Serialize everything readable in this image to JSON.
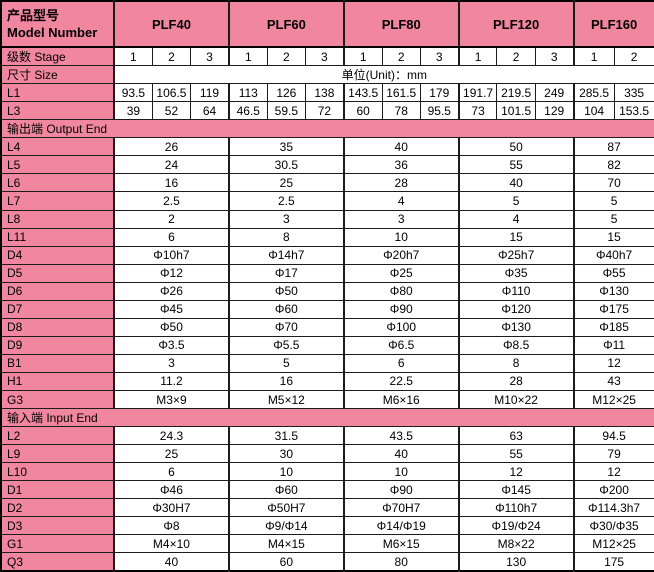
{
  "colors": {
    "pink": "#F0879F",
    "border": "#1c1c1c",
    "cell_bg": "#ffffff",
    "text": "#000000"
  },
  "table": {
    "corner_zh": "产品型号",
    "corner_en": "Model Number",
    "stage_row_label": "级数 Stage",
    "size_row_label": "尺寸 Size",
    "unit_text": "单位(Unit)：mm",
    "models": [
      {
        "name": "PLF40",
        "stages": 3,
        "stage_numbers": [
          "1",
          "2",
          "3"
        ]
      },
      {
        "name": "PLF60",
        "stages": 3,
        "stage_numbers": [
          "1",
          "2",
          "3"
        ]
      },
      {
        "name": "PLF80",
        "stages": 3,
        "stage_numbers": [
          "1",
          "2",
          "3"
        ]
      },
      {
        "name": "PLF120",
        "stages": 3,
        "stage_numbers": [
          "1",
          "2",
          "3"
        ]
      },
      {
        "name": "PLF160",
        "stages": 2,
        "stage_numbers": [
          "1",
          "2"
        ]
      }
    ],
    "per_stage_rows": [
      {
        "label": "L1",
        "values": [
          "93.5",
          "106.5",
          "119",
          "113",
          "126",
          "138",
          "143.5",
          "161.5",
          "179",
          "191.7",
          "219.5",
          "249",
          "285.5",
          "335"
        ]
      },
      {
        "label": "L3",
        "values": [
          "39",
          "52",
          "64",
          "46.5",
          "59.5",
          "72",
          "60",
          "78",
          "95.5",
          "73",
          "101.5",
          "129",
          "104",
          "153.5"
        ]
      }
    ],
    "sections": [
      {
        "label": "输出端 Output End",
        "rows": [
          {
            "label": "L4",
            "values": [
              "26",
              "35",
              "40",
              "50",
              "87"
            ]
          },
          {
            "label": "L5",
            "values": [
              "24",
              "30.5",
              "36",
              "55",
              "82"
            ]
          },
          {
            "label": "L6",
            "values": [
              "16",
              "25",
              "28",
              "40",
              "70"
            ]
          },
          {
            "label": "L7",
            "values": [
              "2.5",
              "2.5",
              "4",
              "5",
              "5"
            ]
          },
          {
            "label": "L8",
            "values": [
              "2",
              "3",
              "3",
              "4",
              "5"
            ]
          },
          {
            "label": "L11",
            "values": [
              "6",
              "8",
              "10",
              "15",
              "15"
            ]
          },
          {
            "label": "D4",
            "values": [
              "Φ10h7",
              "Φ14h7",
              "Φ20h7",
              "Φ25h7",
              "Φ40h7"
            ]
          },
          {
            "label": "D5",
            "values": [
              "Φ12",
              "Φ17",
              "Φ25",
              "Φ35",
              "Φ55"
            ]
          },
          {
            "label": "D6",
            "values": [
              "Φ26",
              "Φ50",
              "Φ80",
              "Φ110",
              "Φ130"
            ]
          },
          {
            "label": "D7",
            "values": [
              "Φ45",
              "Φ60",
              "Φ90",
              "Φ120",
              "Φ175"
            ]
          },
          {
            "label": "D8",
            "values": [
              "Φ50",
              "Φ70",
              "Φ100",
              "Φ130",
              "Φ185"
            ]
          },
          {
            "label": "D9",
            "values": [
              "Φ3.5",
              "Φ5.5",
              "Φ6.5",
              "Φ8.5",
              "Φ11"
            ]
          },
          {
            "label": "B1",
            "values": [
              "3",
              "5",
              "6",
              "8",
              "12"
            ]
          },
          {
            "label": "H1",
            "values": [
              "11.2",
              "16",
              "22.5",
              "28",
              "43"
            ]
          },
          {
            "label": "G3",
            "values": [
              "M3×9",
              "M5×12",
              "M6×16",
              "M10×22",
              "M12×25"
            ]
          }
        ]
      },
      {
        "label": "输入端 Input End",
        "rows": [
          {
            "label": "L2",
            "values": [
              "24.3",
              "31.5",
              "43.5",
              "63",
              "94.5"
            ]
          },
          {
            "label": "L9",
            "values": [
              "25",
              "30",
              "40",
              "55",
              "79"
            ]
          },
          {
            "label": "L10",
            "values": [
              "6",
              "10",
              "10",
              "12",
              "12"
            ]
          },
          {
            "label": "D1",
            "values": [
              "Φ46",
              "Φ60",
              "Φ90",
              "Φ145",
              "Φ200"
            ]
          },
          {
            "label": "D2",
            "values": [
              "Φ30H7",
              "Φ50H7",
              "Φ70H7",
              "Φ110h7",
              "Φ114.3h7"
            ]
          },
          {
            "label": "D3",
            "values": [
              "Φ8",
              "Φ9/Φ14",
              "Φ14/Φ19",
              "Φ19/Φ24",
              "Φ30/Φ35"
            ]
          },
          {
            "label": "G1",
            "values": [
              "M4×10",
              "M4×15",
              "M6×15",
              "M8×22",
              "M12×25"
            ]
          },
          {
            "label": "Q3",
            "values": [
              "40",
              "60",
              "80",
              "130",
              "175"
            ]
          }
        ]
      }
    ]
  }
}
